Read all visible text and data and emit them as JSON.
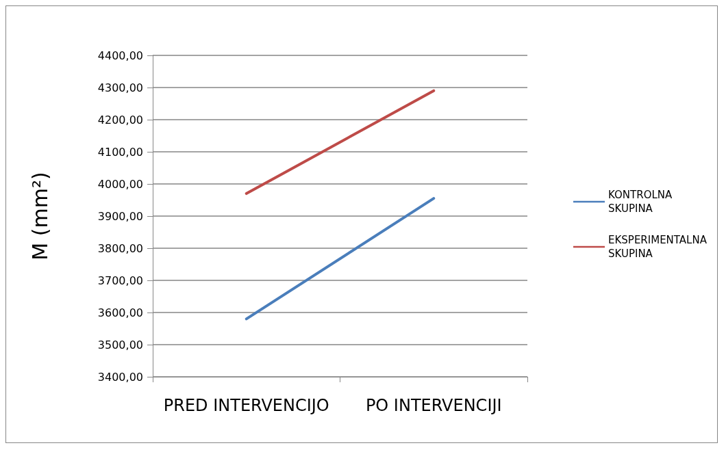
{
  "chart_data": {
    "type": "line",
    "ylabel": "M (mm²)",
    "categories": [
      "PRED INTERVENCIJO",
      "PO INTERVENCIJI"
    ],
    "series": [
      {
        "name": "KONTROLNA SKUPINA",
        "color": "#4a7ebb",
        "values": [
          3580,
          3955
        ]
      },
      {
        "name": "EKSPERIMENTALNA SKUPINA",
        "color": "#be4b48",
        "values": [
          3970,
          4290
        ]
      }
    ],
    "ylim": [
      3400,
      4400
    ],
    "yticks": [
      {
        "value": 3400,
        "label": "3400,00"
      },
      {
        "value": 3500,
        "label": "3500,00"
      },
      {
        "value": 3600,
        "label": "3600,00"
      },
      {
        "value": 3700,
        "label": "3700,00"
      },
      {
        "value": 3800,
        "label": "3800,00"
      },
      {
        "value": 3900,
        "label": "3900,00"
      },
      {
        "value": 4000,
        "label": "4000,00"
      },
      {
        "value": 4100,
        "label": "4100,00"
      },
      {
        "value": 4200,
        "label": "4200,00"
      },
      {
        "value": 4300,
        "label": "4300,00"
      },
      {
        "value": 4400,
        "label": "4400,00"
      }
    ],
    "grid": "y",
    "legend": "right",
    "marker": "none",
    "line_style": "solid"
  }
}
